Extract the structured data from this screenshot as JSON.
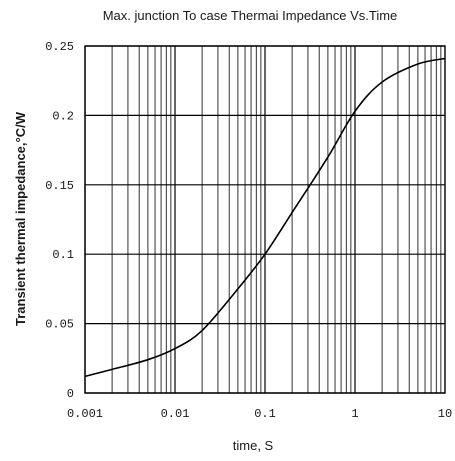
{
  "chart_data": {
    "type": "line",
    "title": "Max. junction To case Thermai Impedance Vs.Time",
    "xlabel": "time, S",
    "ylabel": "Transient thermal impedance,°C/W",
    "xscale": "log",
    "xlim": [
      0.001,
      10
    ],
    "ylim": [
      0,
      0.25
    ],
    "grid": true,
    "x_ticks": [
      {
        "value": 0.001,
        "label": "0.001"
      },
      {
        "value": 0.01,
        "label": "0.01"
      },
      {
        "value": 0.1,
        "label": "0.1"
      },
      {
        "value": 1,
        "label": "1"
      },
      {
        "value": 10,
        "label": "10"
      }
    ],
    "y_ticks": [
      {
        "value": 0,
        "label": "0"
      },
      {
        "value": 0.05,
        "label": "0.05"
      },
      {
        "value": 0.1,
        "label": "0.1"
      },
      {
        "value": 0.15,
        "label": "0.15"
      },
      {
        "value": 0.2,
        "label": "0.2"
      },
      {
        "value": 0.25,
        "label": "0.25"
      }
    ],
    "series": [
      {
        "color": "#000000",
        "x": [
          0.001,
          0.002,
          0.005,
          0.01,
          0.02,
          0.05,
          0.1,
          0.2,
          0.5,
          1,
          2,
          5,
          10
        ],
        "y": [
          0.012,
          0.017,
          0.024,
          0.032,
          0.045,
          0.075,
          0.1,
          0.13,
          0.17,
          0.203,
          0.224,
          0.237,
          0.241
        ]
      }
    ]
  }
}
